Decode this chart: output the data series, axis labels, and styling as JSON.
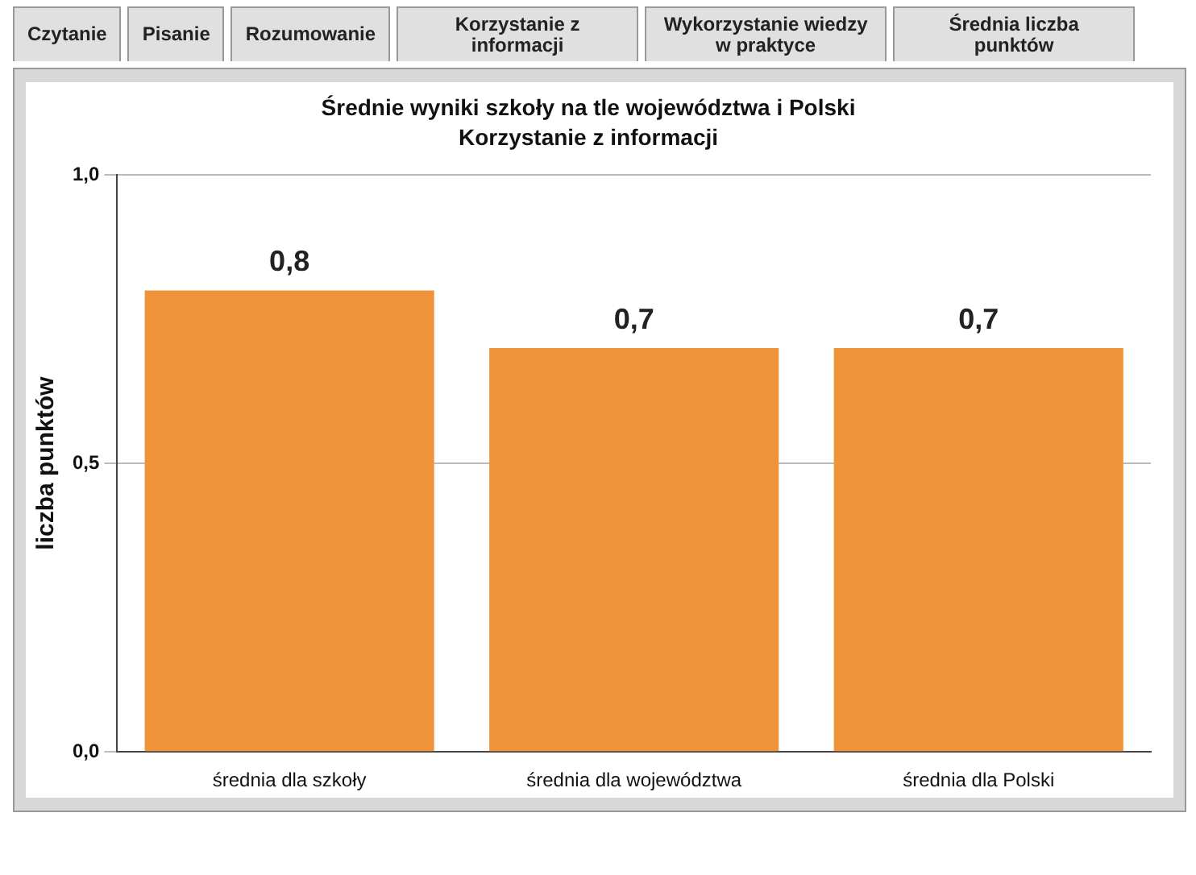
{
  "chart_data": {
    "type": "bar",
    "title": "Średnie wyniki szkoły na tle województwa i Polski",
    "subtitle": "Korzystanie z informacji",
    "ylabel": "liczba punktów",
    "categories": [
      "średnia dla szkoły",
      "średnia dla województwa",
      "średnia dla Polski"
    ],
    "values": [
      0.8,
      0.7,
      0.7
    ],
    "value_labels": [
      "0,8",
      "0,7",
      "0,7"
    ],
    "color": "#f0943c",
    "ylim": [
      0,
      1
    ],
    "yticks": [
      {
        "value": 0,
        "label": "0,0"
      },
      {
        "value": 0.5,
        "label": "0,5"
      },
      {
        "value": 1,
        "label": "1,0"
      }
    ],
    "grid": "y",
    "legend": false,
    "annotations": [
      "Czytanie",
      "Pisanie",
      "Rozumowanie",
      "Korzystanie z informacji",
      "Wykorzystanie wiedzy w praktyce",
      "Średnia liczba punktów"
    ]
  }
}
